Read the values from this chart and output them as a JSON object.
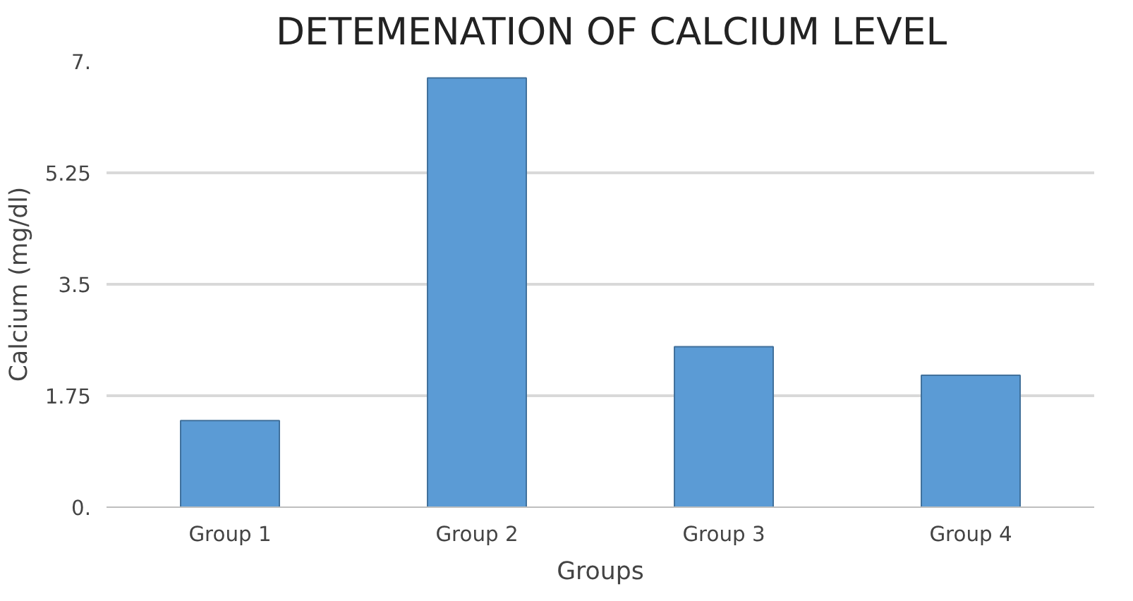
{
  "chart_data": {
    "type": "bar",
    "title": "DETEMENATION OF CALCIUM LEVEL",
    "xlabel": "Groups",
    "ylabel": "Calcium (mg/dl)",
    "categories": [
      "Group 1",
      "Group 2",
      "Group 3",
      "Group 4"
    ],
    "values": [
      1.36,
      6.74,
      2.52,
      2.07
    ],
    "color": "#5b9bd5",
    "ylim": [
      0,
      7
    ],
    "yticks": [
      {
        "value": 0,
        "label": "0."
      },
      1.75,
      3.5,
      5.25,
      {
        "value": 7,
        "label": "7."
      }
    ],
    "grid": "y"
  }
}
